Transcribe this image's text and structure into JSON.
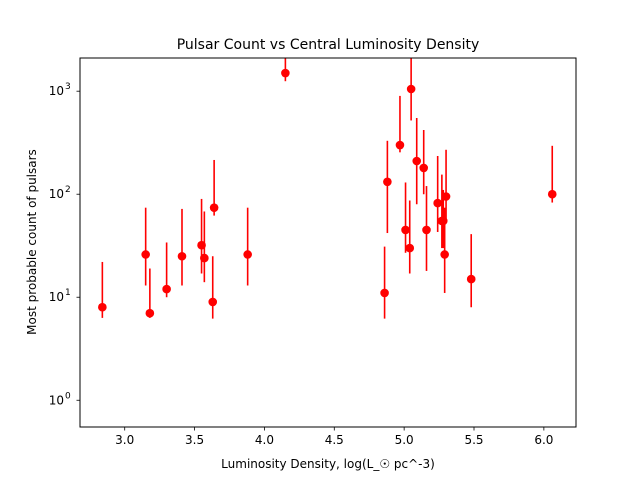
{
  "chart_data": {
    "type": "scatter",
    "title": "Pulsar Count vs Central Luminosity Density",
    "xlabel": "Luminosity Density, log(L_☉ pc^-3)",
    "ylabel": "Most probable count of pulsars",
    "xlim": [
      2.68,
      6.23
    ],
    "ylim": [
      0.55,
      2100
    ],
    "yscale": "log",
    "grid": false,
    "legend": "none",
    "marker_color": "#ff0000",
    "xticks": [
      {
        "value": 3.0,
        "label": "3.0"
      },
      {
        "value": 3.5,
        "label": "3.5"
      },
      {
        "value": 4.0,
        "label": "4.0"
      },
      {
        "value": 4.5,
        "label": "4.5"
      },
      {
        "value": 5.0,
        "label": "5.0"
      },
      {
        "value": 5.5,
        "label": "5.5"
      },
      {
        "value": 6.0,
        "label": "6.0"
      }
    ],
    "yticks": [
      {
        "value": 1,
        "base": "10",
        "exp": "0"
      },
      {
        "value": 10,
        "base": "10",
        "exp": "1"
      },
      {
        "value": 100,
        "base": "10",
        "exp": "2"
      },
      {
        "value": 1000,
        "base": "10",
        "exp": "3"
      }
    ],
    "points": [
      {
        "x": 2.84,
        "y": 8,
        "lo": 6.3,
        "hi": 22
      },
      {
        "x": 3.15,
        "y": 26,
        "lo": 13,
        "hi": 74
      },
      {
        "x": 3.18,
        "y": 7,
        "lo": 6.3,
        "hi": 19
      },
      {
        "x": 3.3,
        "y": 12,
        "lo": 10,
        "hi": 34
      },
      {
        "x": 3.41,
        "y": 25,
        "lo": 13,
        "hi": 72
      },
      {
        "x": 3.55,
        "y": 32,
        "lo": 17,
        "hi": 90
      },
      {
        "x": 3.57,
        "y": 24,
        "lo": 14,
        "hi": 68
      },
      {
        "x": 3.63,
        "y": 9,
        "lo": 6.2,
        "hi": 25
      },
      {
        "x": 3.64,
        "y": 74,
        "lo": 62,
        "hi": 215
      },
      {
        "x": 3.88,
        "y": 26,
        "lo": 13,
        "hi": 74
      },
      {
        "x": 4.15,
        "y": 1500,
        "lo": 1250,
        "hi": 2100
      },
      {
        "x": 4.86,
        "y": 11,
        "lo": 6.2,
        "hi": 31
      },
      {
        "x": 4.88,
        "y": 132,
        "lo": 42,
        "hi": 330
      },
      {
        "x": 4.97,
        "y": 300,
        "lo": 255,
        "hi": 900
      },
      {
        "x": 5.01,
        "y": 45,
        "lo": 27,
        "hi": 130
      },
      {
        "x": 5.04,
        "y": 30,
        "lo": 17,
        "hi": 87
      },
      {
        "x": 5.05,
        "y": 1050,
        "lo": 520,
        "hi": 2100
      },
      {
        "x": 5.09,
        "y": 210,
        "lo": 80,
        "hi": 550
      },
      {
        "x": 5.14,
        "y": 180,
        "lo": 100,
        "hi": 420
      },
      {
        "x": 5.16,
        "y": 45,
        "lo": 18,
        "hi": 120
      },
      {
        "x": 5.24,
        "y": 82,
        "lo": 43,
        "hi": 235
      },
      {
        "x": 5.27,
        "y": 55,
        "lo": 30,
        "hi": 155
      },
      {
        "x": 5.28,
        "y": 55,
        "lo": 30,
        "hi": 110
      },
      {
        "x": 5.29,
        "y": 26,
        "lo": 11,
        "hi": 74
      },
      {
        "x": 5.3,
        "y": 95,
        "lo": 55,
        "hi": 270
      },
      {
        "x": 5.48,
        "y": 15,
        "lo": 8,
        "hi": 41
      },
      {
        "x": 6.06,
        "y": 100,
        "lo": 83,
        "hi": 295
      }
    ]
  }
}
